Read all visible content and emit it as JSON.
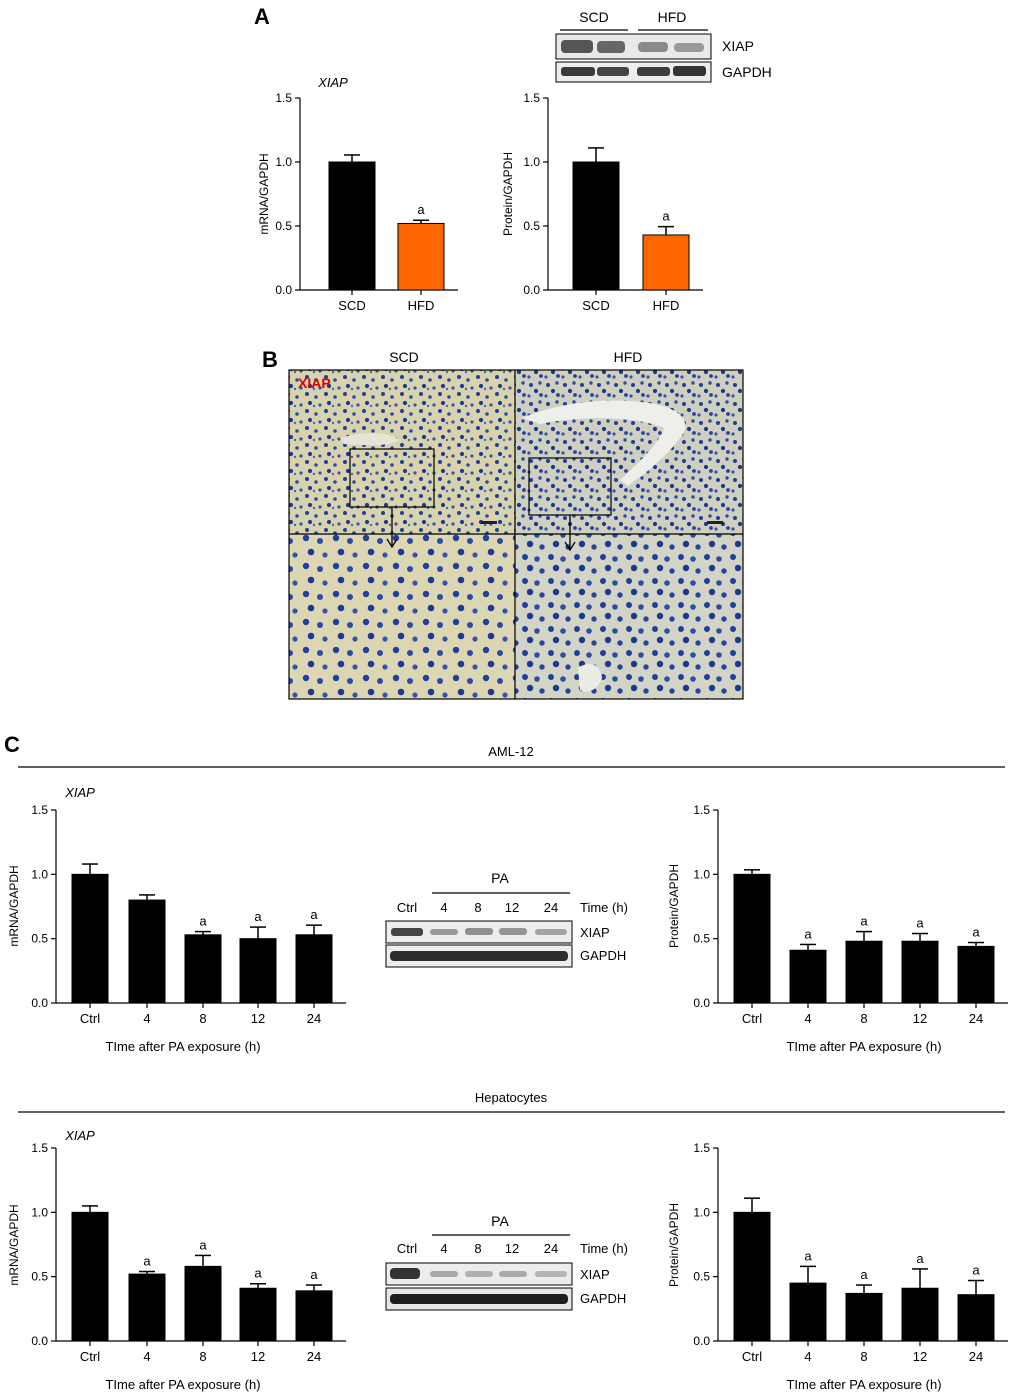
{
  "panels": {
    "A": "A",
    "B": "B",
    "C": "C"
  },
  "groups": [
    "SCD",
    "HFD"
  ],
  "gene_italic": "XIAP",
  "axis_labels": {
    "mrna": "mRNA/GAPDH",
    "protein": "Protein/GAPDH",
    "time": "TIme after PA exposure (h)"
  },
  "blot_A": {
    "group_labels": [
      "SCD",
      "HFD"
    ],
    "row_labels": [
      "XIAP",
      "GAPDH"
    ]
  },
  "section_B": {
    "col_titles": [
      "SCD",
      "HFD"
    ],
    "stain_label": "XIAP"
  },
  "section_C": {
    "rows": [
      {
        "title": "AML-12"
      },
      {
        "title": "Hepatocytes"
      }
    ],
    "blot": {
      "treatment_label": "PA",
      "lanes": [
        "Ctrl",
        "4",
        "8",
        "12",
        "24"
      ],
      "time_label": "Time (h)",
      "row_labels": [
        "XIAP",
        "GAPDH"
      ]
    }
  },
  "colors": {
    "scd_bar": "#000000",
    "hfd_bar": "#ff6600",
    "stain_label": "#e00000",
    "tissue_bg": "#d9d3a8",
    "nuclei": "#1f3f9c"
  },
  "chart_data": [
    {
      "id": "A-mrna",
      "type": "bar",
      "title": "XIAP",
      "categories": [
        "SCD",
        "HFD"
      ],
      "values": [
        1.0,
        0.52
      ],
      "errors": [
        0.055,
        0.025
      ],
      "annotations": [
        "",
        "a"
      ],
      "ylabel": "mRNA/GAPDH",
      "xlabel": "",
      "ylim": [
        0,
        1.5
      ],
      "yticks": [
        "0.0",
        "0.5",
        "1.0",
        "1.5"
      ]
    },
    {
      "id": "A-protein",
      "type": "bar",
      "title": "",
      "categories": [
        "SCD",
        "HFD"
      ],
      "values": [
        1.0,
        0.43
      ],
      "errors": [
        0.11,
        0.065
      ],
      "annotations": [
        "",
        "a"
      ],
      "ylabel": "Protein/GAPDH",
      "xlabel": "",
      "ylim": [
        0,
        1.5
      ],
      "yticks": [
        "0.0",
        "0.5",
        "1.0",
        "1.5"
      ]
    },
    {
      "id": "C-aml-mrna",
      "type": "bar",
      "title": "XIAP",
      "categories": [
        "Ctrl",
        "4",
        "8",
        "12",
        "24"
      ],
      "values": [
        1.0,
        0.8,
        0.53,
        0.5,
        0.53
      ],
      "errors": [
        0.08,
        0.04,
        0.025,
        0.09,
        0.075
      ],
      "annotations": [
        "",
        "",
        "a",
        "a",
        "a"
      ],
      "ylabel": "mRNA/GAPDH",
      "xlabel": "TIme after PA exposure (h)",
      "ylim": [
        0,
        1.5
      ],
      "yticks": [
        "0.0",
        "0.5",
        "1.0",
        "1.5"
      ]
    },
    {
      "id": "C-aml-protein",
      "type": "bar",
      "title": "",
      "categories": [
        "Ctrl",
        "4",
        "8",
        "12",
        "24"
      ],
      "values": [
        1.0,
        0.41,
        0.48,
        0.48,
        0.44
      ],
      "errors": [
        0.035,
        0.045,
        0.075,
        0.06,
        0.03
      ],
      "annotations": [
        "",
        "a",
        "a",
        "a",
        "a"
      ],
      "ylabel": "Protein/GAPDH",
      "xlabel": "TIme after PA exposure (h)",
      "ylim": [
        0,
        1.5
      ],
      "yticks": [
        "0.0",
        "0.5",
        "1.0",
        "1.5"
      ]
    },
    {
      "id": "C-hep-mrna",
      "type": "bar",
      "title": "XIAP",
      "categories": [
        "Ctrl",
        "4",
        "8",
        "12",
        "24"
      ],
      "values": [
        1.0,
        0.52,
        0.58,
        0.41,
        0.39
      ],
      "errors": [
        0.05,
        0.02,
        0.085,
        0.035,
        0.045
      ],
      "annotations": [
        "",
        "a",
        "a",
        "a",
        "a"
      ],
      "ylabel": "mRNA/GAPDH",
      "xlabel": "TIme after PA exposure (h)",
      "ylim": [
        0,
        1.5
      ],
      "yticks": [
        "0.0",
        "0.5",
        "1.0",
        "1.5"
      ]
    },
    {
      "id": "C-hep-protein",
      "type": "bar",
      "title": "",
      "categories": [
        "Ctrl",
        "4",
        "8",
        "12",
        "24"
      ],
      "values": [
        1.0,
        0.45,
        0.37,
        0.41,
        0.36
      ],
      "errors": [
        0.11,
        0.13,
        0.065,
        0.15,
        0.11
      ],
      "annotations": [
        "",
        "a",
        "a",
        "a",
        "a"
      ],
      "ylabel": "Protein/GAPDH",
      "xlabel": "TIme after PA exposure (h)",
      "ylim": [
        0,
        1.5
      ],
      "yticks": [
        "0.0",
        "0.5",
        "1.0",
        "1.5"
      ]
    }
  ]
}
